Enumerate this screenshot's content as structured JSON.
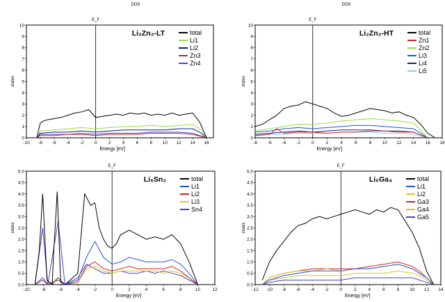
{
  "chart_data": [
    {
      "type": "line",
      "header": "DOS",
      "fermi_label": "E_F",
      "title": "Li₂Zn₃-LT",
      "ylabel": "states",
      "xlabel": "Energy [eV]",
      "xlim": [
        -10,
        17
      ],
      "ylim": [
        0,
        10
      ],
      "xticks": [
        "-10",
        "-8",
        "-6",
        "-4",
        "-2",
        "0",
        "2",
        "4",
        "6",
        "8",
        "10",
        "12",
        "14",
        "16"
      ],
      "yticks": [
        "0",
        "1",
        "2",
        "3",
        "4",
        "5",
        "6",
        "7",
        "8",
        "9",
        "10"
      ],
      "fermi": 0,
      "legend": [
        "total",
        "Li1",
        "Li2",
        "Zn3",
        "Zn4"
      ],
      "colors": {
        "total": "#000000",
        "Li1": "#90e040",
        "Li2": "#0a1a8a",
        "Zn3": "#d02020",
        "Zn4": "#4040e0"
      },
      "series": [
        {
          "name": "total",
          "x": [
            -8.5,
            -8,
            -7.5,
            -7,
            -6,
            -5,
            -4,
            -3,
            -2,
            -1,
            0,
            1,
            2,
            3,
            4,
            5,
            6,
            7,
            8,
            9,
            10,
            11,
            12,
            13,
            14,
            15,
            16
          ],
          "values": [
            0,
            1.3,
            1.5,
            1.6,
            1.7,
            1.8,
            2,
            2.2,
            2.3,
            2.5,
            1.8,
            1.9,
            2,
            2.1,
            2,
            2.2,
            2.1,
            2.2,
            2,
            2.1,
            2,
            2.2,
            2,
            2.1,
            2.2,
            1.4,
            0
          ]
        },
        {
          "name": "Li1",
          "x": [
            -8.5,
            -8,
            -6,
            -4,
            -2,
            0,
            2,
            4,
            6,
            8,
            10,
            12,
            14,
            15,
            16
          ],
          "values": [
            0,
            0.6,
            0.7,
            0.8,
            0.9,
            0.8,
            0.9,
            1,
            1,
            1.1,
            1,
            1.1,
            1.2,
            0.8,
            0
          ]
        },
        {
          "name": "Li2",
          "x": [
            -8.5,
            -8,
            -6,
            -4,
            -2,
            0,
            2,
            4,
            6,
            8,
            10,
            12,
            14,
            15,
            16
          ],
          "values": [
            0,
            0.4,
            0.5,
            0.5,
            0.6,
            0.5,
            0.6,
            0.7,
            0.7,
            0.7,
            0.7,
            0.8,
            0.8,
            0.5,
            0
          ]
        },
        {
          "name": "Zn3",
          "x": [
            -8.5,
            -8,
            -6,
            -4,
            -2,
            0,
            2,
            4,
            6,
            8,
            10,
            12,
            14,
            16
          ],
          "values": [
            0,
            0.2,
            0.2,
            0.3,
            0.3,
            0.2,
            0.3,
            0.3,
            0.3,
            0.4,
            0.4,
            0.4,
            0.3,
            0
          ]
        },
        {
          "name": "Zn4",
          "x": [
            -8.5,
            -8,
            -6,
            -4,
            -2,
            0,
            2,
            4,
            6,
            8,
            10,
            12,
            14,
            16
          ],
          "values": [
            0,
            0.3,
            0.3,
            0.3,
            0.4,
            0.3,
            0.4,
            0.4,
            0.4,
            0.5,
            0.5,
            0.5,
            0.4,
            0
          ]
        }
      ]
    },
    {
      "type": "line",
      "header": "DOS",
      "fermi_label": "E_F",
      "title": "Li₂Zn₃-HT",
      "ylabel": "states",
      "xlabel": "Energy [eV]",
      "xlim": [
        -8,
        18
      ],
      "ylim": [
        0,
        10
      ],
      "xticks": [
        "-8",
        "-6",
        "-4",
        "-2",
        "0",
        "2",
        "4",
        "6",
        "8",
        "10",
        "12",
        "14",
        "16",
        "18"
      ],
      "yticks": [
        "0",
        "1",
        "2",
        "3",
        "4",
        "5",
        "6",
        "7",
        "8",
        "9",
        "10"
      ],
      "fermi": 0,
      "legend": [
        "total",
        "Zn1",
        "Zn2",
        "Li3",
        "Li4",
        "Li5"
      ],
      "colors": {
        "total": "#000000",
        "Zn1": "#d02020",
        "Zn2": "#90e040",
        "Li3": "#2050e0",
        "Li4": "#1a1a8a",
        "Li5": "#80d0e0"
      },
      "series": [
        {
          "name": "total",
          "x": [
            -8,
            -7,
            -6,
            -5,
            -4,
            -3,
            -2,
            -1,
            0,
            1,
            2,
            3,
            4,
            5,
            6,
            7,
            8,
            9,
            10,
            11,
            12,
            13,
            14,
            15,
            16,
            17
          ],
          "values": [
            1,
            1.2,
            1.6,
            2,
            2.6,
            2.8,
            2.9,
            3.2,
            3,
            2.8,
            2.6,
            2.2,
            1.9,
            2,
            2.2,
            2.4,
            2.6,
            2.5,
            2.4,
            2.2,
            2.3,
            2,
            1.8,
            1.2,
            0.4,
            0
          ]
        },
        {
          "name": "Zn1",
          "x": [
            -8,
            -6,
            -5,
            -4,
            -2,
            0,
            2,
            4,
            6,
            8,
            10,
            12,
            14,
            16
          ],
          "values": [
            0.2,
            0.3,
            0.8,
            0.4,
            0.5,
            0.5,
            0.4,
            0.5,
            0.5,
            0.6,
            0.6,
            0.5,
            0.5,
            0
          ]
        },
        {
          "name": "Zn2",
          "x": [
            -8,
            -6,
            -4,
            -2,
            0,
            2,
            4,
            6,
            8,
            10,
            12,
            14,
            16
          ],
          "values": [
            0.6,
            0.8,
            1,
            1.2,
            1.2,
            1.3,
            1.5,
            1.6,
            1.7,
            1.6,
            1.5,
            1.3,
            0
          ]
        },
        {
          "name": "Li3",
          "x": [
            -8,
            -6,
            -4,
            -2,
            0,
            2,
            4,
            6,
            8,
            10,
            12,
            14,
            16
          ],
          "values": [
            0.5,
            0.6,
            0.8,
            0.9,
            0.8,
            0.9,
            1,
            1.1,
            1.1,
            1,
            0.9,
            0.8,
            0
          ]
        },
        {
          "name": "Li4",
          "x": [
            -8,
            -6,
            -4,
            -2,
            0,
            2,
            4,
            6,
            8,
            10,
            12,
            14,
            16
          ],
          "values": [
            0.3,
            0.4,
            0.5,
            0.6,
            0.5,
            0.6,
            0.7,
            0.7,
            0.7,
            0.6,
            0.6,
            0.5,
            0
          ]
        },
        {
          "name": "Li5",
          "x": [
            -8,
            -6,
            -4,
            -2,
            0,
            2,
            4,
            6,
            8,
            10,
            12,
            14,
            16
          ],
          "values": [
            0.2,
            0.3,
            0.3,
            0.4,
            0.4,
            0.4,
            0.5,
            0.5,
            0.5,
            0.4,
            0.4,
            0.3,
            0
          ]
        }
      ]
    },
    {
      "type": "line",
      "fermi_label": "E_F",
      "title": "Li₅Sn₂",
      "ylabel": "states",
      "xlabel": "Energy [eV]",
      "xlim": [
        -10,
        12
      ],
      "ylim": [
        0,
        5
      ],
      "xticks": [
        "-10",
        "-8",
        "-6",
        "-4",
        "-2",
        "0",
        "2",
        "4",
        "6",
        "8",
        "10",
        "12"
      ],
      "yticks": [
        "0.0",
        "0.5",
        "1.0",
        "1.5",
        "2.0",
        "2.5",
        "3.0",
        "3.5",
        "4.0",
        "4.5",
        "5.0"
      ],
      "fermi": 0,
      "legend": [
        "total",
        "Li1",
        "Li2",
        "Li3",
        "Sn4"
      ],
      "colors": {
        "total": "#000000",
        "Li1": "#2050e0",
        "Li2": "#d02020",
        "Li3": "#e0c020",
        "Sn4": "#4040d0"
      },
      "series": [
        {
          "name": "total",
          "x": [
            -9,
            -8.5,
            -8.1,
            -7.6,
            -7,
            -6.8,
            -6.4,
            -6,
            -5.5,
            -4,
            -3.2,
            -2.5,
            -2,
            -1.5,
            -1,
            -0.5,
            0,
            0.5,
            1,
            2,
            3,
            4,
            5,
            6,
            7,
            8,
            9,
            10
          ],
          "values": [
            0,
            1.5,
            4,
            0.2,
            0,
            1.5,
            4.1,
            0.1,
            0,
            0.5,
            4,
            3.5,
            3.6,
            2.5,
            2,
            1.7,
            1.6,
            1.8,
            2.2,
            2.4,
            2.2,
            2,
            2.1,
            2,
            2.2,
            1.8,
            1,
            0
          ]
        },
        {
          "name": "Li1",
          "x": [
            -9,
            -8.1,
            -7.5,
            -7,
            -6.3,
            -5.5,
            -4,
            -3,
            -2,
            -1,
            0,
            1,
            2,
            3,
            4,
            5,
            6,
            7,
            8,
            9,
            10
          ],
          "values": [
            0,
            0.3,
            0,
            0,
            0.3,
            0,
            0.2,
            1.2,
            1.9,
            1.2,
            0.9,
            1,
            1.2,
            1.1,
            1,
            1,
            1,
            1.1,
            0.9,
            0.5,
            0
          ]
        },
        {
          "name": "Li2",
          "x": [
            -9,
            -8.1,
            -7.5,
            -6.3,
            -5.5,
            -4,
            -3,
            -2,
            -1,
            0,
            1,
            2,
            3,
            4,
            5,
            6,
            7,
            8,
            9,
            10
          ],
          "values": [
            0,
            0.2,
            0,
            0.2,
            0,
            0.1,
            0.8,
            1,
            0.7,
            0.6,
            0.7,
            0.8,
            0.7,
            0.7,
            0.7,
            0.7,
            0.8,
            0.6,
            0.3,
            0
          ]
        },
        {
          "name": "Li3",
          "x": [
            -9,
            -8.1,
            -7.5,
            -6.3,
            -5.5,
            -4,
            -3,
            -2,
            -1,
            0,
            1,
            2,
            3,
            4,
            5,
            6,
            7,
            8,
            9,
            10
          ],
          "values": [
            0,
            0.2,
            0,
            0.3,
            0,
            0.1,
            0.7,
            0.8,
            0.6,
            0.5,
            0.6,
            0.6,
            0.6,
            0.6,
            0.6,
            0.5,
            0.6,
            0.5,
            0.3,
            0
          ]
        },
        {
          "name": "Sn4",
          "x": [
            -9,
            -8.1,
            -7.5,
            -6.3,
            -5.5,
            -4,
            -3,
            -2,
            -1,
            0,
            1,
            2,
            3,
            4,
            5,
            6,
            7,
            8,
            9,
            10
          ],
          "values": [
            0,
            2.5,
            0,
            2.8,
            0,
            0.3,
            0.9,
            0.7,
            0.5,
            0.5,
            0.6,
            0.5,
            0.5,
            0.6,
            0.5,
            0.6,
            0.5,
            0.4,
            0.2,
            0
          ]
        }
      ]
    },
    {
      "type": "line",
      "fermi_label": "E_F",
      "title": "Li₅Ga₄",
      "ylabel": "states",
      "xlabel": "Energy [eV]",
      "xlim": [
        -12,
        14
      ],
      "ylim": [
        0,
        5
      ],
      "xticks": [
        "-12",
        "-10",
        "-8",
        "-6",
        "-4",
        "-2",
        "0",
        "2",
        "4",
        "6",
        "8",
        "10",
        "12",
        "14"
      ],
      "yticks": [
        "0.0",
        "0.5",
        "1.0",
        "1.5",
        "2.0",
        "2.5",
        "3.0",
        "3.5",
        "4.0",
        "4.5",
        "5.0"
      ],
      "fermi": 0,
      "legend": [
        "total",
        "Li1",
        "Li2",
        "Ga3",
        "Ga4",
        "Ga5"
      ],
      "colors": {
        "total": "#000000",
        "Li1": "#2050e0",
        "Li2": "#e0c020",
        "Ga3": "#d02020",
        "Ga4": "#e0c020",
        "Ga5": "#4040d0"
      },
      "series": [
        {
          "name": "total",
          "x": [
            -11,
            -10,
            -9,
            -8,
            -7,
            -6,
            -5,
            -4,
            -3,
            -2,
            -1,
            0,
            1,
            2,
            3,
            4,
            5,
            6,
            7,
            8,
            9,
            10,
            11,
            12,
            13
          ],
          "values": [
            0.2,
            1,
            1.5,
            1.9,
            2.3,
            2.6,
            2.7,
            2.9,
            3,
            2.9,
            3,
            3.1,
            3.2,
            3.3,
            3.2,
            3.1,
            3.3,
            3.2,
            3.4,
            3.3,
            2.8,
            2.3,
            1.6,
            0.6,
            0
          ]
        },
        {
          "name": "Li1",
          "x": [
            -11,
            -10,
            -8,
            -6,
            -4,
            -2,
            0,
            2,
            4,
            6,
            8,
            10,
            11,
            12,
            13
          ],
          "values": [
            0,
            0.2,
            0.4,
            0.5,
            0.6,
            0.6,
            0.6,
            0.7,
            0.7,
            0.8,
            0.9,
            0.7,
            0.5,
            0.3,
            0
          ]
        },
        {
          "name": "Li2",
          "x": [
            -11,
            -10,
            -8,
            -6,
            -4,
            -2,
            0,
            2,
            4,
            6,
            8,
            10,
            11,
            12,
            13
          ],
          "values": [
            0,
            0.3,
            0.5,
            0.6,
            0.6,
            0.7,
            0.6,
            0.7,
            0.7,
            0.8,
            0.9,
            0.7,
            0.5,
            0.3,
            0
          ]
        },
        {
          "name": "Ga3",
          "x": [
            -11,
            -10,
            -8,
            -6,
            -4,
            -2,
            0,
            2,
            4,
            6,
            8,
            10,
            11,
            12,
            13
          ],
          "values": [
            0,
            0.3,
            0.5,
            0.6,
            0.7,
            0.7,
            0.7,
            0.7,
            0.8,
            0.9,
            1,
            0.8,
            0.6,
            0.3,
            0
          ]
        },
        {
          "name": "Ga4",
          "x": [
            -11,
            -10,
            -8,
            -6,
            -4,
            -2,
            0,
            2,
            4,
            6,
            8,
            10,
            11,
            12,
            13
          ],
          "values": [
            0,
            0.2,
            0.3,
            0.4,
            0.4,
            0.4,
            0.4,
            0.5,
            0.5,
            0.5,
            0.6,
            0.5,
            0.4,
            0.2,
            0
          ]
        },
        {
          "name": "Ga5",
          "x": [
            -11,
            -10,
            -8,
            -6,
            -4,
            -2,
            0,
            2,
            4,
            6,
            8,
            10,
            11,
            12,
            13
          ],
          "values": [
            0,
            0.1,
            0.2,
            0.2,
            0.2,
            0.2,
            0.2,
            0.3,
            0.3,
            0.3,
            0.3,
            0.3,
            0.2,
            0.1,
            0
          ]
        }
      ]
    }
  ]
}
